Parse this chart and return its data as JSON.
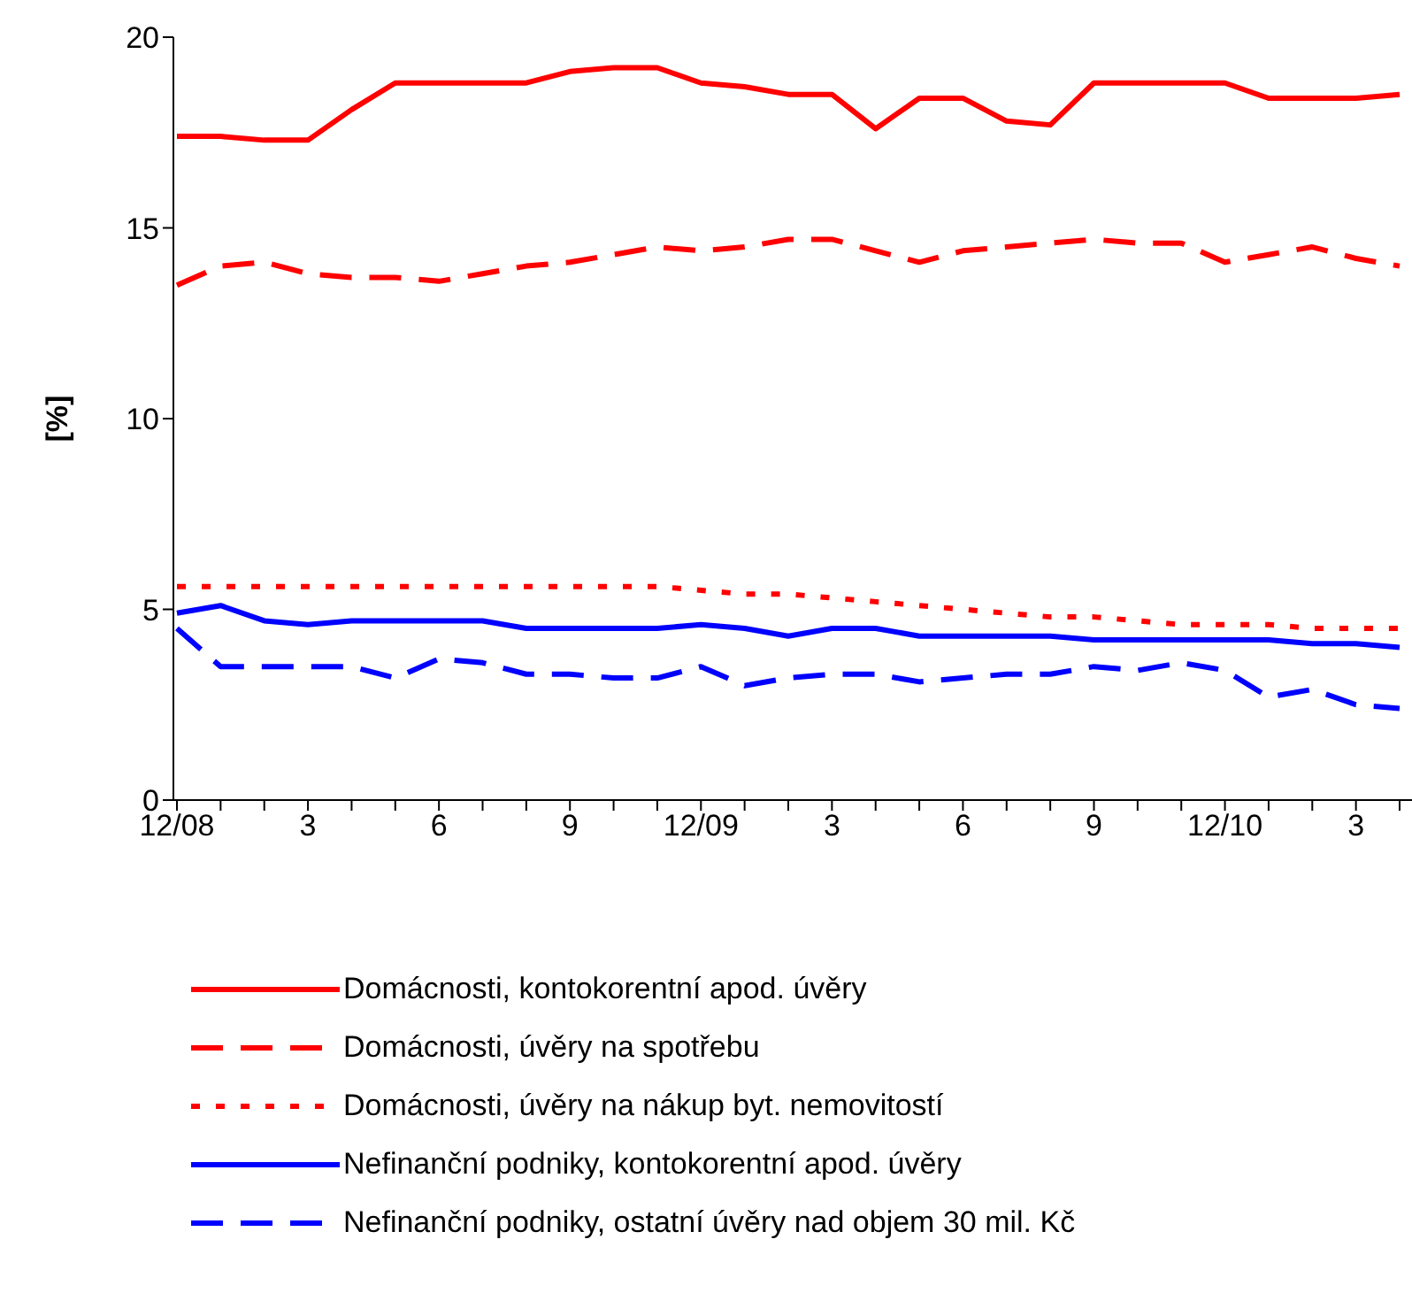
{
  "chart_data": {
    "type": "line",
    "ylabel": "[%]",
    "categories": [
      "12/08",
      null,
      null,
      "3",
      null,
      null,
      "6",
      null,
      null,
      "9",
      null,
      null,
      "12/09",
      null,
      null,
      "3",
      null,
      null,
      "6",
      null,
      null,
      "9",
      null,
      null,
      "12/10",
      null,
      null,
      "3",
      null
    ],
    "ylim": [
      0,
      20
    ],
    "yticks": [
      0,
      5,
      10,
      15,
      20
    ],
    "grid": false,
    "legend": "bottom",
    "marker": "none",
    "series": [
      {
        "name": "Domácnosti, kontokorentní apod. úvěry",
        "color": "#ff0000",
        "line_style": "solid",
        "values": [
          17.4,
          17.4,
          17.3,
          17.3,
          18.1,
          18.8,
          18.8,
          18.8,
          18.8,
          19.1,
          19.2,
          19.2,
          18.8,
          18.7,
          18.5,
          18.5,
          17.6,
          18.4,
          18.4,
          17.8,
          17.7,
          18.8,
          18.8,
          18.8,
          18.8,
          18.4,
          18.4,
          18.4,
          18.5
        ]
      },
      {
        "name": "Domácnosti, úvěry na spotřebu",
        "color": "#ff0000",
        "line_style": "dashed",
        "values": [
          13.5,
          14.0,
          14.1,
          13.8,
          13.7,
          13.7,
          13.6,
          13.8,
          14.0,
          14.1,
          14.3,
          14.5,
          14.4,
          14.5,
          14.7,
          14.7,
          14.4,
          14.1,
          14.4,
          14.5,
          14.6,
          14.7,
          14.6,
          14.6,
          14.1,
          14.3,
          14.5,
          14.2,
          14.0
        ]
      },
      {
        "name": "Domácnosti, úvěry na nákup byt. nemovitostí",
        "color": "#ff0000",
        "line_style": "dotted",
        "values": [
          5.6,
          5.6,
          5.6,
          5.6,
          5.6,
          5.6,
          5.6,
          5.6,
          5.6,
          5.6,
          5.6,
          5.6,
          5.5,
          5.4,
          5.4,
          5.3,
          5.2,
          5.1,
          5.0,
          4.9,
          4.8,
          4.8,
          4.7,
          4.6,
          4.6,
          4.6,
          4.5,
          4.5,
          4.5
        ]
      },
      {
        "name": "Nefinanční podniky, kontokorentní apod. úvěry",
        "color": "#0000ff",
        "line_style": "solid",
        "values": [
          4.9,
          5.1,
          4.7,
          4.6,
          4.7,
          4.7,
          4.7,
          4.7,
          4.5,
          4.5,
          4.5,
          4.5,
          4.6,
          4.5,
          4.3,
          4.5,
          4.5,
          4.3,
          4.3,
          4.3,
          4.3,
          4.2,
          4.2,
          4.2,
          4.2,
          4.2,
          4.1,
          4.1,
          4.0
        ]
      },
      {
        "name": "Nefinanční podniky, ostatní úvěry nad objem 30 mil. Kč",
        "color": "#0000ff",
        "line_style": "dashed",
        "values": [
          4.5,
          3.5,
          3.5,
          3.5,
          3.5,
          3.2,
          3.7,
          3.6,
          3.3,
          3.3,
          3.2,
          3.2,
          3.5,
          3.0,
          3.2,
          3.3,
          3.3,
          3.1,
          3.2,
          3.3,
          3.3,
          3.5,
          3.4,
          3.6,
          3.4,
          2.7,
          2.9,
          2.5,
          2.4
        ]
      }
    ]
  }
}
